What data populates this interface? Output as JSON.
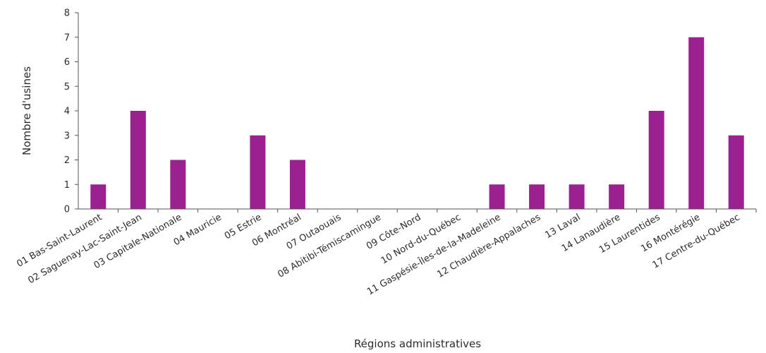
{
  "chart_data": {
    "type": "bar",
    "title": "",
    "xlabel": "Régions administratives",
    "ylabel": "Nombre d'usines",
    "ylim": [
      0,
      8
    ],
    "yticks": [
      0,
      1,
      2,
      3,
      4,
      5,
      6,
      7,
      8
    ],
    "grid": false,
    "legend": "none",
    "bar_color": "#9b2190",
    "categories": [
      "01 Bas-Saint-Laurent",
      "02 Saguenay-Lac-Saint-Jean",
      "03 Capitale-Nationale",
      "04 Mauricie",
      "05 Estrie",
      "06 Montréal",
      "07 Outaouais",
      "08 Abitibi-Témiscamingue",
      "09 Côte-Nord",
      "10 Nord-du-Québec",
      "11 Gaspésie-Îles-de-la-Madeleine",
      "12 Chaudière-Appalaches",
      "13 Laval",
      "14 Lanaudière",
      "15 Laurentides",
      "16 Montérégie",
      "17 Centre-du-Québec"
    ],
    "values": [
      1,
      4,
      2,
      0,
      3,
      2,
      0,
      0,
      0,
      0,
      1,
      1,
      1,
      1,
      4,
      7,
      3
    ]
  }
}
